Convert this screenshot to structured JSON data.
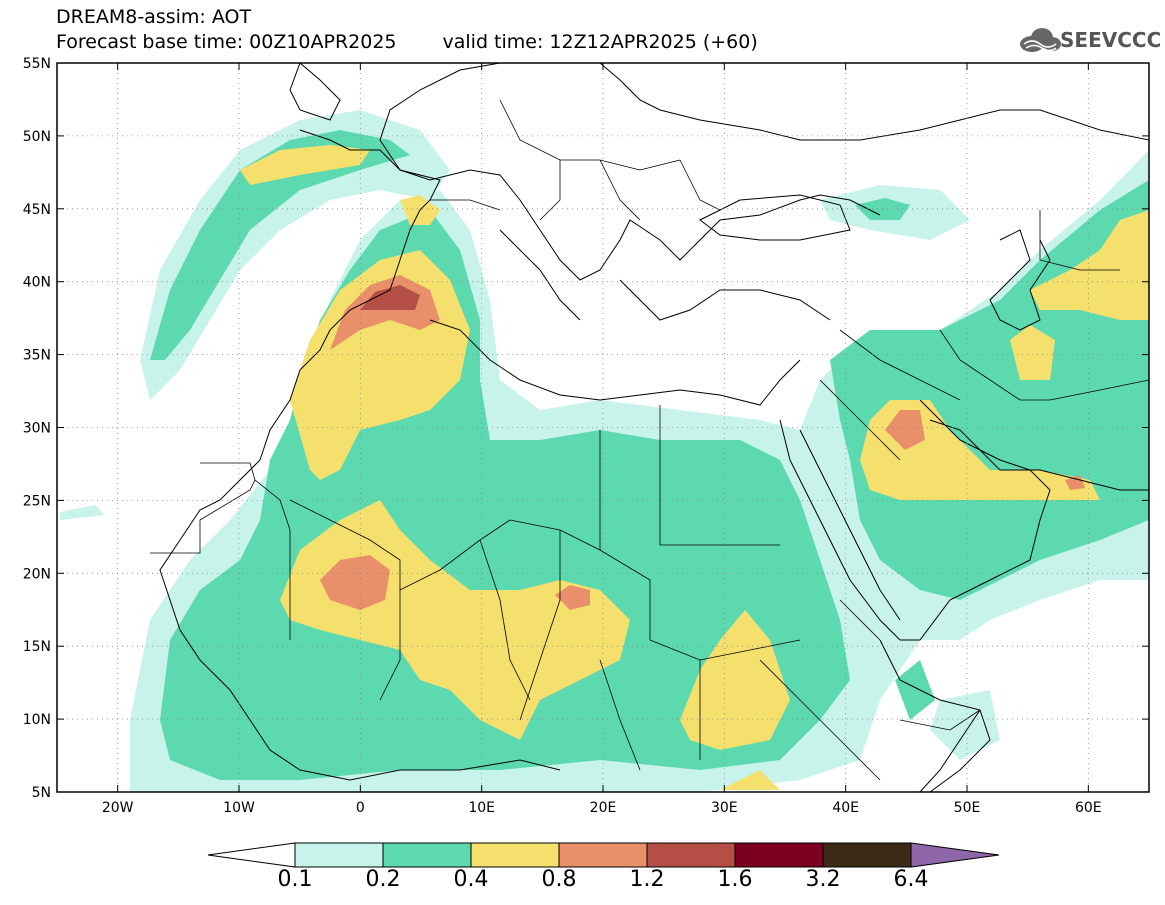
{
  "header": {
    "line1": "DREAM8-assim: AOT",
    "base_time": "Forecast base time: 00Z10APR2025",
    "valid_time": "valid time: 12Z12APR2025 (+60)"
  },
  "logo": {
    "text": "SEEVCCC",
    "icon": "cloud-icon"
  },
  "map": {
    "lon_range": [
      -25,
      65
    ],
    "lat_range": [
      5,
      55
    ],
    "lat_ticks": [
      "55N",
      "50N",
      "45N",
      "40N",
      "35N",
      "30N",
      "25N",
      "20N",
      "15N",
      "10N",
      "5N"
    ],
    "lon_ticks": [
      "20W",
      "10W",
      "0",
      "10E",
      "20E",
      "30E",
      "40E",
      "50E",
      "60E"
    ]
  },
  "colorbar": {
    "levels": [
      "0.1",
      "0.2",
      "0.4",
      "0.8",
      "1.2",
      "1.6",
      "3.2",
      "6.4"
    ],
    "colors": [
      "#c8f3ea",
      "#5dd9b0",
      "#f5e06e",
      "#e9906a",
      "#b54e44",
      "#7d0022",
      "#3b2a16",
      "#8f66a8"
    ]
  }
}
